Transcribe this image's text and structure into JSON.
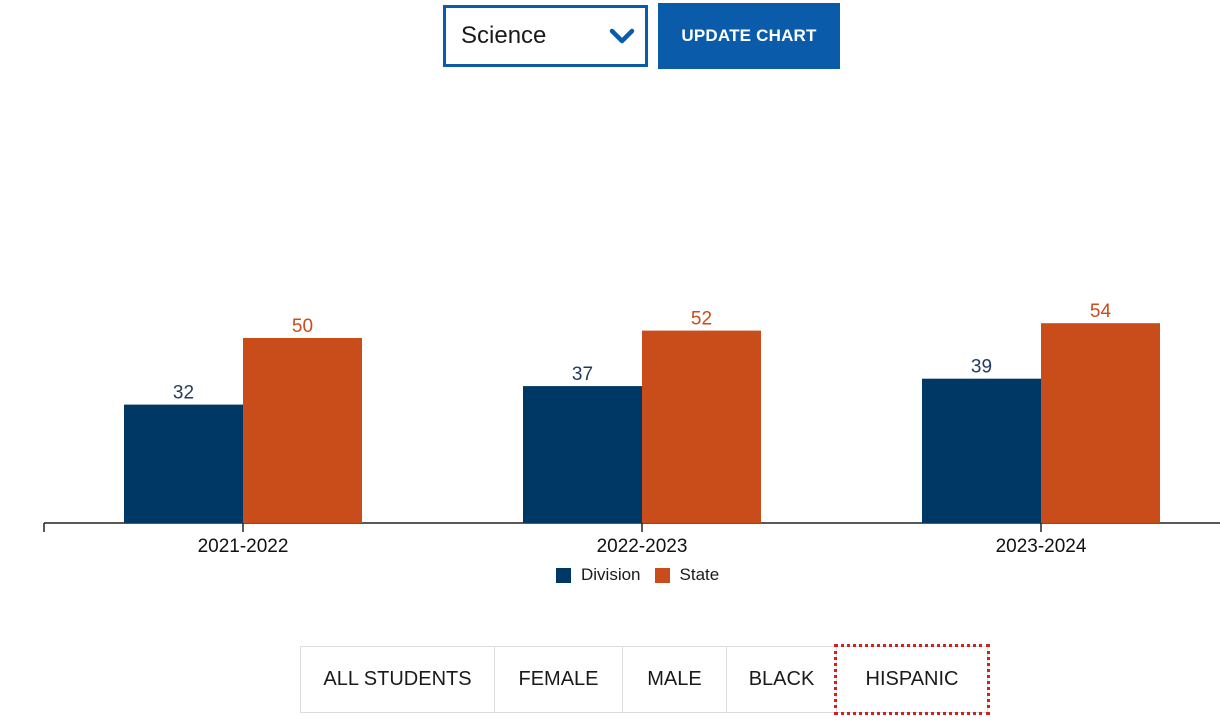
{
  "controls": {
    "subject_select": {
      "value": "Science",
      "icon": "chevron-down-icon"
    },
    "update_button_label": "UPDATE CHART"
  },
  "colors": {
    "accent": "#0a5cab",
    "division": "#003865",
    "state": "#c94c1b",
    "focus_outline": "#d21f1f"
  },
  "chart_data": {
    "type": "bar",
    "categories": [
      "2021-2022",
      "2022-2023",
      "2023-2024"
    ],
    "series": [
      {
        "name": "Division",
        "values": [
          32,
          37,
          39
        ],
        "color": "#003865"
      },
      {
        "name": "State",
        "values": [
          50,
          52,
          54
        ],
        "color": "#c94c1b"
      }
    ],
    "title": "",
    "xlabel": "",
    "ylabel": "",
    "ylim": [
      0,
      100
    ],
    "grid": false,
    "legend_position": "bottom"
  },
  "legend": {
    "items": [
      {
        "label": "Division",
        "color": "#003865"
      },
      {
        "label": "State",
        "color": "#c94c1b"
      }
    ]
  },
  "tabs": [
    {
      "label": "ALL STUDENTS"
    },
    {
      "label": "FEMALE"
    },
    {
      "label": "MALE"
    },
    {
      "label": "BLACK"
    },
    {
      "label": "HISPANIC",
      "focused": true
    }
  ]
}
